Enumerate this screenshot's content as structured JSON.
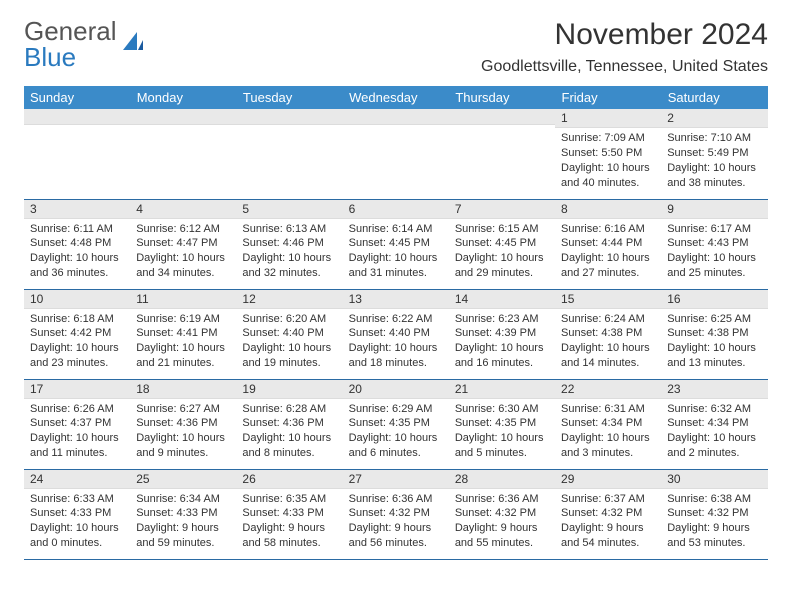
{
  "logo": {
    "textGray": "General",
    "textBlue": "Blue"
  },
  "title": "November 2024",
  "location": "Goodlettsville, Tennessee, United States",
  "colors": {
    "headerBg": "#3b8bc9",
    "headerText": "#ffffff",
    "dayNumBg": "#e9e9e9",
    "rowBorder": "#2a6aa3",
    "bodyText": "#333333"
  },
  "dayHeaders": [
    "Sunday",
    "Monday",
    "Tuesday",
    "Wednesday",
    "Thursday",
    "Friday",
    "Saturday"
  ],
  "weeks": [
    [
      {
        "n": "",
        "sr": "",
        "ss": "",
        "dl": ""
      },
      {
        "n": "",
        "sr": "",
        "ss": "",
        "dl": ""
      },
      {
        "n": "",
        "sr": "",
        "ss": "",
        "dl": ""
      },
      {
        "n": "",
        "sr": "",
        "ss": "",
        "dl": ""
      },
      {
        "n": "",
        "sr": "",
        "ss": "",
        "dl": ""
      },
      {
        "n": "1",
        "sr": "Sunrise: 7:09 AM",
        "ss": "Sunset: 5:50 PM",
        "dl": "Daylight: 10 hours and 40 minutes."
      },
      {
        "n": "2",
        "sr": "Sunrise: 7:10 AM",
        "ss": "Sunset: 5:49 PM",
        "dl": "Daylight: 10 hours and 38 minutes."
      }
    ],
    [
      {
        "n": "3",
        "sr": "Sunrise: 6:11 AM",
        "ss": "Sunset: 4:48 PM",
        "dl": "Daylight: 10 hours and 36 minutes."
      },
      {
        "n": "4",
        "sr": "Sunrise: 6:12 AM",
        "ss": "Sunset: 4:47 PM",
        "dl": "Daylight: 10 hours and 34 minutes."
      },
      {
        "n": "5",
        "sr": "Sunrise: 6:13 AM",
        "ss": "Sunset: 4:46 PM",
        "dl": "Daylight: 10 hours and 32 minutes."
      },
      {
        "n": "6",
        "sr": "Sunrise: 6:14 AM",
        "ss": "Sunset: 4:45 PM",
        "dl": "Daylight: 10 hours and 31 minutes."
      },
      {
        "n": "7",
        "sr": "Sunrise: 6:15 AM",
        "ss": "Sunset: 4:45 PM",
        "dl": "Daylight: 10 hours and 29 minutes."
      },
      {
        "n": "8",
        "sr": "Sunrise: 6:16 AM",
        "ss": "Sunset: 4:44 PM",
        "dl": "Daylight: 10 hours and 27 minutes."
      },
      {
        "n": "9",
        "sr": "Sunrise: 6:17 AM",
        "ss": "Sunset: 4:43 PM",
        "dl": "Daylight: 10 hours and 25 minutes."
      }
    ],
    [
      {
        "n": "10",
        "sr": "Sunrise: 6:18 AM",
        "ss": "Sunset: 4:42 PM",
        "dl": "Daylight: 10 hours and 23 minutes."
      },
      {
        "n": "11",
        "sr": "Sunrise: 6:19 AM",
        "ss": "Sunset: 4:41 PM",
        "dl": "Daylight: 10 hours and 21 minutes."
      },
      {
        "n": "12",
        "sr": "Sunrise: 6:20 AM",
        "ss": "Sunset: 4:40 PM",
        "dl": "Daylight: 10 hours and 19 minutes."
      },
      {
        "n": "13",
        "sr": "Sunrise: 6:22 AM",
        "ss": "Sunset: 4:40 PM",
        "dl": "Daylight: 10 hours and 18 minutes."
      },
      {
        "n": "14",
        "sr": "Sunrise: 6:23 AM",
        "ss": "Sunset: 4:39 PM",
        "dl": "Daylight: 10 hours and 16 minutes."
      },
      {
        "n": "15",
        "sr": "Sunrise: 6:24 AM",
        "ss": "Sunset: 4:38 PM",
        "dl": "Daylight: 10 hours and 14 minutes."
      },
      {
        "n": "16",
        "sr": "Sunrise: 6:25 AM",
        "ss": "Sunset: 4:38 PM",
        "dl": "Daylight: 10 hours and 13 minutes."
      }
    ],
    [
      {
        "n": "17",
        "sr": "Sunrise: 6:26 AM",
        "ss": "Sunset: 4:37 PM",
        "dl": "Daylight: 10 hours and 11 minutes."
      },
      {
        "n": "18",
        "sr": "Sunrise: 6:27 AM",
        "ss": "Sunset: 4:36 PM",
        "dl": "Daylight: 10 hours and 9 minutes."
      },
      {
        "n": "19",
        "sr": "Sunrise: 6:28 AM",
        "ss": "Sunset: 4:36 PM",
        "dl": "Daylight: 10 hours and 8 minutes."
      },
      {
        "n": "20",
        "sr": "Sunrise: 6:29 AM",
        "ss": "Sunset: 4:35 PM",
        "dl": "Daylight: 10 hours and 6 minutes."
      },
      {
        "n": "21",
        "sr": "Sunrise: 6:30 AM",
        "ss": "Sunset: 4:35 PM",
        "dl": "Daylight: 10 hours and 5 minutes."
      },
      {
        "n": "22",
        "sr": "Sunrise: 6:31 AM",
        "ss": "Sunset: 4:34 PM",
        "dl": "Daylight: 10 hours and 3 minutes."
      },
      {
        "n": "23",
        "sr": "Sunrise: 6:32 AM",
        "ss": "Sunset: 4:34 PM",
        "dl": "Daylight: 10 hours and 2 minutes."
      }
    ],
    [
      {
        "n": "24",
        "sr": "Sunrise: 6:33 AM",
        "ss": "Sunset: 4:33 PM",
        "dl": "Daylight: 10 hours and 0 minutes."
      },
      {
        "n": "25",
        "sr": "Sunrise: 6:34 AM",
        "ss": "Sunset: 4:33 PM",
        "dl": "Daylight: 9 hours and 59 minutes."
      },
      {
        "n": "26",
        "sr": "Sunrise: 6:35 AM",
        "ss": "Sunset: 4:33 PM",
        "dl": "Daylight: 9 hours and 58 minutes."
      },
      {
        "n": "27",
        "sr": "Sunrise: 6:36 AM",
        "ss": "Sunset: 4:32 PM",
        "dl": "Daylight: 9 hours and 56 minutes."
      },
      {
        "n": "28",
        "sr": "Sunrise: 6:36 AM",
        "ss": "Sunset: 4:32 PM",
        "dl": "Daylight: 9 hours and 55 minutes."
      },
      {
        "n": "29",
        "sr": "Sunrise: 6:37 AM",
        "ss": "Sunset: 4:32 PM",
        "dl": "Daylight: 9 hours and 54 minutes."
      },
      {
        "n": "30",
        "sr": "Sunrise: 6:38 AM",
        "ss": "Sunset: 4:32 PM",
        "dl": "Daylight: 9 hours and 53 minutes."
      }
    ]
  ]
}
